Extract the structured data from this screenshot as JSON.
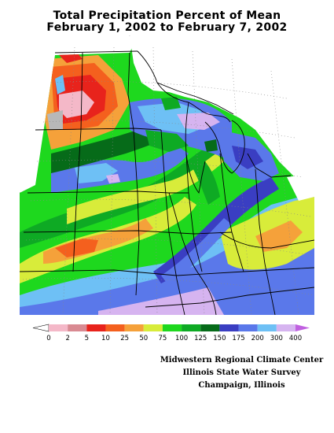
{
  "title": {
    "line1": "Total Precipitation Percent of Mean",
    "line2": "February 1, 2002 to February 7, 2002"
  },
  "legend": {
    "tick_labels": [
      "0",
      "2",
      "5",
      "10",
      "25",
      "50",
      "75",
      "100",
      "125",
      "150",
      "175",
      "200",
      "300",
      "400"
    ],
    "colors": [
      "#f4b8c8",
      "#d98a92",
      "#e8231c",
      "#f4601e",
      "#f5a13a",
      "#d8ec3a",
      "#1ed81e",
      "#0eaa24",
      "#066b19",
      "#3a3ec2",
      "#5a78ea",
      "#6ec0f5",
      "#d6b4f0",
      "#c060e0"
    ],
    "under_color": "#ffffff",
    "over_color": "#c060e0"
  },
  "credits": {
    "line1": "Midwestern Regional Climate Center",
    "line2": "Illinois State Water Survey",
    "line3": "Champaign, Illinois"
  },
  "map_colors": {
    "no_data": "#ffffff",
    "missing_gray": "#b8b8b8",
    "boundary": "#000000",
    "graticule": "#888888"
  }
}
